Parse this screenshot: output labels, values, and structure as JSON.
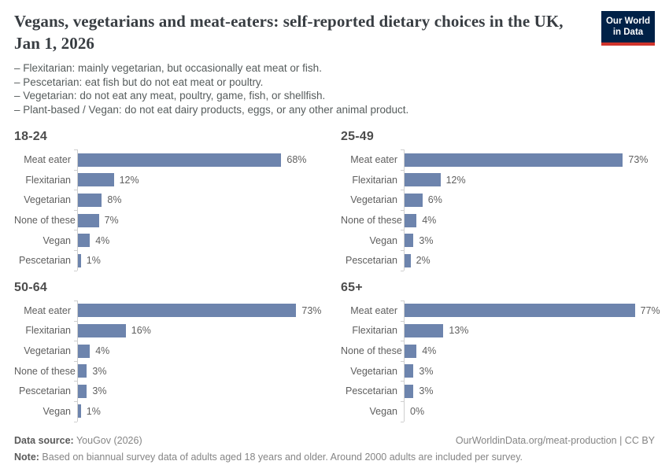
{
  "header": {
    "title": "Vegans, vegetarians and meat-eaters: self-reported dietary choices in the UK, Jan 1, 2026",
    "logo": {
      "line1": "Our World",
      "line2": "in Data"
    }
  },
  "subtitle_lines": [
    "– Flexitarian: mainly vegetarian, but occasionally eat meat or fish.",
    "– Pescetarian: eat fish but do not eat meat or poultry.",
    "– Vegetarian: do not eat any meat, poultry, game, fish, or shellfish.",
    "– Plant-based / Vegan: do not eat dairy products, eggs, or any other animal product."
  ],
  "chart_data": [
    {
      "type": "bar",
      "orientation": "horizontal",
      "title": "18-24",
      "unit": "%",
      "categories": [
        "Meat eater",
        "Flexitarian",
        "Vegetarian",
        "None of these",
        "Vegan",
        "Pescetarian"
      ],
      "values": [
        68,
        12,
        8,
        7,
        4,
        1
      ],
      "xlim": [
        0,
        80
      ],
      "grid": false,
      "value_labels": true
    },
    {
      "type": "bar",
      "orientation": "horizontal",
      "title": "25-49",
      "unit": "%",
      "categories": [
        "Meat eater",
        "Flexitarian",
        "Vegetarian",
        "None of these",
        "Vegan",
        "Pescetarian"
      ],
      "values": [
        73,
        12,
        6,
        4,
        3,
        2
      ],
      "xlim": [
        0,
        80
      ],
      "grid": false,
      "value_labels": true
    },
    {
      "type": "bar",
      "orientation": "horizontal",
      "title": "50-64",
      "unit": "%",
      "categories": [
        "Meat eater",
        "Flexitarian",
        "Vegetarian",
        "None of these",
        "Pescetarian",
        "Vegan"
      ],
      "values": [
        73,
        16,
        4,
        3,
        3,
        1
      ],
      "xlim": [
        0,
        80
      ],
      "grid": false,
      "value_labels": true
    },
    {
      "type": "bar",
      "orientation": "horizontal",
      "title": "65+",
      "unit": "%",
      "categories": [
        "Meat eater",
        "Flexitarian",
        "None of these",
        "Vegetarian",
        "Pescetarian",
        "Vegan"
      ],
      "values": [
        77,
        13,
        4,
        3,
        3,
        0
      ],
      "xlim": [
        0,
        80
      ],
      "grid": false,
      "value_labels": true
    }
  ],
  "footer": {
    "data_source_label": "Data source:",
    "data_source_value": " YouGov (2026)",
    "citation": "OurWorldinData.org/meat-production | CC BY",
    "note_label": "Note:",
    "note_value": " Based on biannual survey data of adults aged 18 years and older. Around 2000 adults are included per survey."
  },
  "colors": {
    "bar": "#6d84ad",
    "axis": "#cfcfcf",
    "title_text": "#383d42",
    "subtitle_text": "#565c5c",
    "label_text": "#5e5e5e",
    "footer_text": "#858585",
    "logo_navy": "#002147",
    "logo_red": "#d0342c"
  }
}
